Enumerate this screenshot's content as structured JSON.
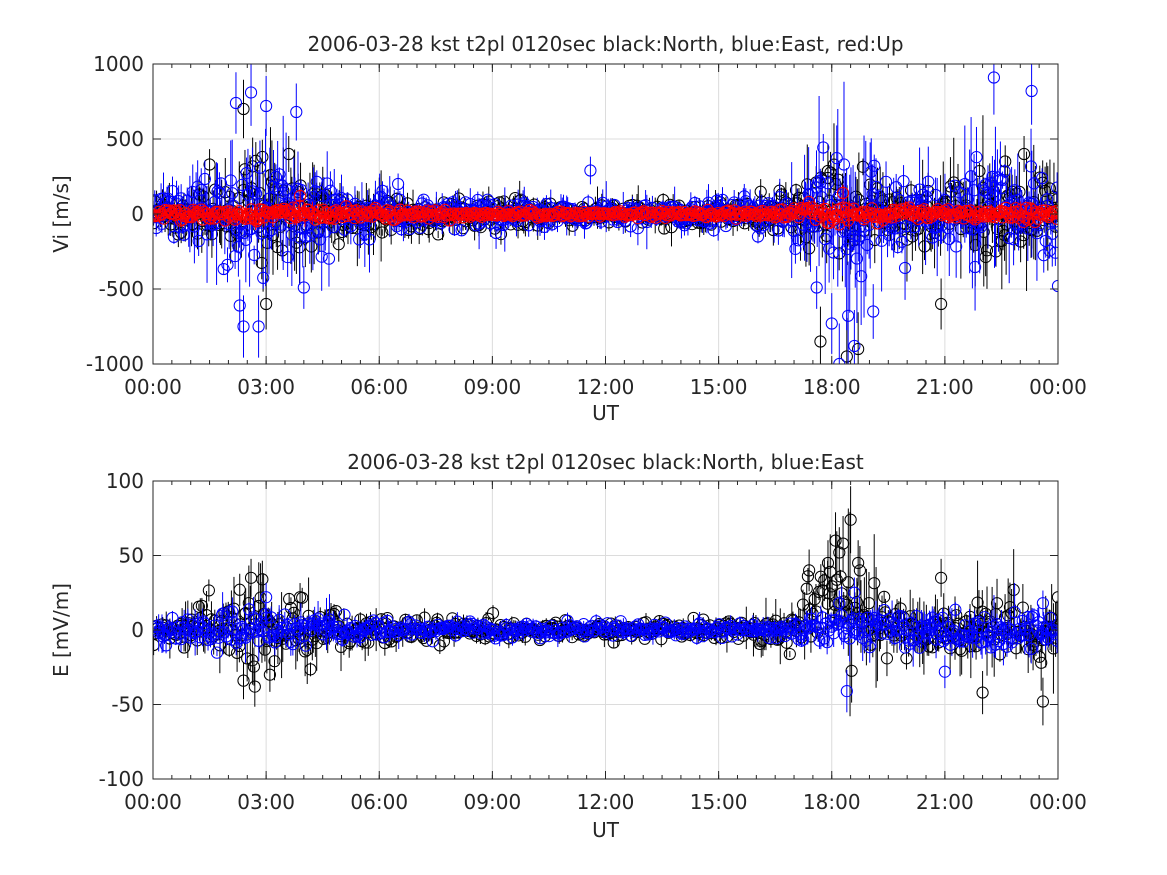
{
  "chart_data": [
    {
      "type": "scatter",
      "title": "2006-03-28 kst t2pl 0120sec black:North, blue:East, red:Up",
      "xlabel": "UT",
      "ylabel": "Vi [m/s]",
      "xlim_hours": [
        0,
        24
      ],
      "ylim": [
        -1000,
        1000
      ],
      "xticks": [
        "00:00",
        "03:00",
        "06:00",
        "09:00",
        "12:00",
        "15:00",
        "18:00",
        "21:00",
        "00:00"
      ],
      "yticks": [
        "-1000",
        "-500",
        "0",
        "500",
        "1000"
      ],
      "grid": true,
      "marker": "open-circle",
      "series": [
        {
          "color": "#000000",
          "error_bars": true,
          "envelope": [
            [
              0,
              130
            ],
            [
              1,
              180
            ],
            [
              2,
              260
            ],
            [
              2.5,
              320
            ],
            [
              3,
              350
            ],
            [
              4,
              280
            ],
            [
              5,
              200
            ],
            [
              6,
              140
            ],
            [
              7,
              110
            ],
            [
              9,
              90
            ],
            [
              12,
              80
            ],
            [
              15,
              90
            ],
            [
              16,
              110
            ],
            [
              17,
              180
            ],
            [
              17.5,
              240
            ],
            [
              18,
              300
            ],
            [
              18.5,
              320
            ],
            [
              19,
              250
            ],
            [
              20,
              220
            ],
            [
              21,
              240
            ],
            [
              22,
              280
            ],
            [
              23,
              300
            ],
            [
              24,
              230
            ]
          ],
          "points": [
            [
              2.4,
              700
            ],
            [
              3.6,
              400
            ],
            [
              17.7,
              -850
            ],
            [
              18.4,
              -950
            ],
            [
              18.7,
              -900
            ],
            [
              20.9,
              -600
            ],
            [
              17.9,
              240
            ],
            [
              23.1,
              400
            ],
            [
              3.0,
              -600
            ],
            [
              2.9,
              380
            ],
            [
              1.5,
              330
            ],
            [
              22.6,
              350
            ]
          ]
        },
        {
          "color": "#0000ff",
          "error_bars": true,
          "envelope": [
            [
              0,
              130
            ],
            [
              1,
              220
            ],
            [
              2,
              350
            ],
            [
              2.5,
              430
            ],
            [
              3,
              420
            ],
            [
              4,
              330
            ],
            [
              5,
              230
            ],
            [
              6,
              160
            ],
            [
              7,
              120
            ],
            [
              9,
              100
            ],
            [
              12,
              90
            ],
            [
              15,
              100
            ],
            [
              16,
              120
            ],
            [
              17,
              230
            ],
            [
              17.5,
              380
            ],
            [
              18,
              480
            ],
            [
              18.5,
              480
            ],
            [
              19,
              360
            ],
            [
              20,
              260
            ],
            [
              21,
              260
            ],
            [
              22,
              320
            ],
            [
              23,
              360
            ],
            [
              24,
              270
            ]
          ],
          "points": [
            [
              2.2,
              740
            ],
            [
              2.6,
              810
            ],
            [
              3.0,
              720
            ],
            [
              3.8,
              680
            ],
            [
              2.3,
              -610
            ],
            [
              2.4,
              -750
            ],
            [
              2.8,
              -750
            ],
            [
              4.0,
              -490
            ],
            [
              17.6,
              -490
            ],
            [
              18.0,
              -730
            ],
            [
              18.2,
              -1000
            ],
            [
              18.6,
              -880
            ],
            [
              19.1,
              -650
            ],
            [
              22.3,
              910
            ],
            [
              23.3,
              820
            ],
            [
              24.0,
              -480
            ],
            [
              11.6,
              290
            ],
            [
              6.5,
              200
            ]
          ]
        },
        {
          "color": "#ff0000",
          "error_bars": true,
          "envelope": [
            [
              0,
              35
            ],
            [
              2,
              45
            ],
            [
              3,
              55
            ],
            [
              4,
              50
            ],
            [
              6,
              35
            ],
            [
              9,
              25
            ],
            [
              12,
              22
            ],
            [
              15,
              25
            ],
            [
              17,
              40
            ],
            [
              18,
              65
            ],
            [
              19,
              50
            ],
            [
              21,
              45
            ],
            [
              23,
              50
            ],
            [
              24,
              40
            ]
          ],
          "points": [
            [
              3.9,
              120
            ],
            [
              18.3,
              140
            ]
          ]
        }
      ]
    },
    {
      "type": "scatter",
      "title": "2006-03-28 kst t2pl 0120sec black:North, blue:East",
      "xlabel": "UT",
      "ylabel": "E [mV/m]",
      "xlim_hours": [
        0,
        24
      ],
      "ylim": [
        -100,
        100
      ],
      "xticks": [
        "00:00",
        "03:00",
        "06:00",
        "09:00",
        "12:00",
        "15:00",
        "18:00",
        "21:00",
        "00:00"
      ],
      "yticks": [
        "-100",
        "-50",
        "0",
        "50",
        "100"
      ],
      "grid": true,
      "marker": "open-circle",
      "series": [
        {
          "color": "#000000",
          "error_bars": true,
          "envelope": [
            [
              0,
              9
            ],
            [
              1,
              14
            ],
            [
              2,
              22
            ],
            [
              2.5,
              28
            ],
            [
              3,
              26
            ],
            [
              4,
              20
            ],
            [
              5,
              15
            ],
            [
              6,
              10
            ],
            [
              8,
              7
            ],
            [
              11,
              6
            ],
            [
              14,
              6
            ],
            [
              15.5,
              8
            ],
            [
              16.5,
              12
            ],
            [
              17.3,
              22
            ],
            [
              17.8,
              30
            ],
            [
              18.3,
              38
            ],
            [
              18.8,
              32
            ],
            [
              19.5,
              22
            ],
            [
              20.5,
              18
            ],
            [
              21.5,
              20
            ],
            [
              22.5,
              22
            ],
            [
              23.5,
              22
            ],
            [
              24,
              16
            ]
          ],
          "bias": [
            [
              0,
              0
            ],
            [
              17,
              0
            ],
            [
              17.5,
              14
            ],
            [
              18.3,
              20
            ],
            [
              19,
              10
            ],
            [
              19.5,
              0
            ],
            [
              24,
              0
            ]
          ],
          "points": [
            [
              2.3,
              27
            ],
            [
              2.6,
              35
            ],
            [
              2.9,
              34
            ],
            [
              3.9,
              22
            ],
            [
              17.4,
              40
            ],
            [
              17.9,
              45
            ],
            [
              18.1,
              60
            ],
            [
              18.3,
              58
            ],
            [
              18.5,
              74
            ],
            [
              18.7,
              45
            ],
            [
              20.9,
              35
            ],
            [
              2.4,
              -34
            ],
            [
              2.7,
              -38
            ],
            [
              3.1,
              -30
            ],
            [
              22.0,
              -42
            ],
            [
              23.6,
              -48
            ],
            [
              24.0,
              22
            ],
            [
              18.2,
              52
            ]
          ]
        },
        {
          "color": "#0000ff",
          "error_bars": true,
          "envelope": [
            [
              0,
              8
            ],
            [
              1,
              10
            ],
            [
              2,
              13
            ],
            [
              3,
              14
            ],
            [
              4,
              12
            ],
            [
              5,
              10
            ],
            [
              6,
              7
            ],
            [
              8,
              5
            ],
            [
              11,
              5
            ],
            [
              14,
              5
            ],
            [
              16,
              6
            ],
            [
              17,
              8
            ],
            [
              18,
              12
            ],
            [
              18.5,
              14
            ],
            [
              19,
              12
            ],
            [
              20,
              12
            ],
            [
              21,
              12
            ],
            [
              22,
              13
            ],
            [
              23,
              14
            ],
            [
              24,
              10
            ]
          ],
          "bias": [
            [
              0,
              0
            ],
            [
              24,
              0
            ]
          ],
          "points": [
            [
              18.4,
              -41
            ],
            [
              18.2,
              18
            ],
            [
              18.6,
              25
            ],
            [
              21.0,
              -28
            ],
            [
              23.6,
              18
            ],
            [
              3.0,
              22
            ]
          ]
        }
      ]
    }
  ]
}
